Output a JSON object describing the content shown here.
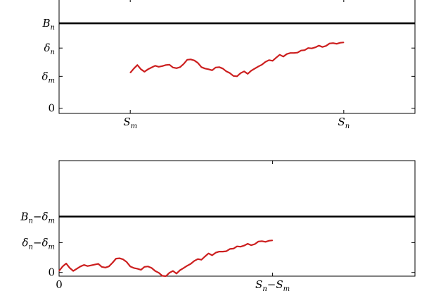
{
  "chart_data": [
    {
      "type": "line",
      "title": "",
      "xlabel": "",
      "ylabel": "",
      "x_ticks": [
        {
          "value": 0,
          "label": {
            "main": "S",
            "sub": "m",
            "pre": "",
            "post": ""
          }
        },
        {
          "value": 60,
          "label": {
            "main": "S",
            "sub": "n",
            "pre": "",
            "post": ""
          }
        }
      ],
      "y_ticks": [
        {
          "value": 0,
          "label": {
            "plain": "0"
          }
        },
        {
          "value": 9,
          "label": {
            "main": "δ",
            "sub": "m"
          }
        },
        {
          "value": 17,
          "label": {
            "main": "δ",
            "sub": "n"
          }
        },
        {
          "value": 24,
          "label": {
            "main": "B",
            "sub": "n"
          }
        }
      ],
      "xlim": [
        -20,
        80
      ],
      "ylim": [
        -1.5,
        31
      ],
      "hlines": [
        {
          "y": 24,
          "color": "#000000"
        }
      ],
      "series": [
        {
          "color": "#cc1f1f",
          "x": [
            0,
            1,
            2,
            3,
            4,
            5,
            6,
            7,
            8,
            9,
            10,
            11,
            12,
            13,
            14,
            15,
            16,
            17,
            18,
            19,
            20,
            21,
            22,
            23,
            24,
            25,
            26,
            27,
            28,
            29,
            30,
            31,
            32,
            33,
            34,
            35,
            36,
            37,
            38,
            39,
            40,
            41,
            42,
            43,
            44,
            45,
            46,
            47,
            48,
            49,
            50,
            51,
            52,
            53,
            54,
            55,
            56,
            57,
            58,
            59,
            60
          ],
          "y": [
            10,
            11.2,
            12.2,
            11,
            10.3,
            11,
            11.5,
            12,
            11.7,
            11.9,
            12.2,
            12.3,
            11.5,
            11.3,
            11.6,
            12.5,
            13.7,
            13.8,
            13.5,
            12.8,
            11.6,
            11.2,
            11,
            10.7,
            11.5,
            11.6,
            11.2,
            10.4,
            9.9,
            9.1,
            9,
            9.9,
            10.4,
            9.7,
            10.6,
            11.2,
            11.8,
            12.3,
            13.1,
            13.6,
            13.4,
            14.3,
            15.1,
            14.6,
            15.3,
            15.6,
            15.6,
            15.7,
            16.3,
            16.4,
            17,
            16.9,
            17.2,
            17.7,
            17.3,
            17.6,
            18.3,
            18.4,
            18.2,
            18.5,
            18.6
          ]
        }
      ]
    },
    {
      "type": "line",
      "title": "",
      "xlabel": "",
      "ylabel": "",
      "x_ticks": [
        {
          "value": 0,
          "label": {
            "plain": "0"
          }
        },
        {
          "value": 60,
          "label": {
            "main": "S",
            "sub": "n",
            "pre": "",
            "post": "−S",
            "sub2": "m"
          }
        }
      ],
      "y_ticks": [
        {
          "value": 0,
          "label": {
            "plain": "0"
          }
        },
        {
          "value": 8,
          "label": {
            "main": "δ",
            "sub": "n",
            "post": "−δ",
            "sub2": "m"
          }
        },
        {
          "value": 15,
          "label": {
            "main": "B",
            "sub": "n",
            "post": "−δ",
            "sub2": "m"
          }
        }
      ],
      "xlim": [
        0,
        100
      ],
      "ylim": [
        -1,
        30
      ],
      "hlines": [
        {
          "y": 15,
          "color": "#000000"
        }
      ],
      "series": [
        {
          "color": "#cc1f1f",
          "x": [
            0,
            1,
            2,
            3,
            4,
            5,
            6,
            7,
            8,
            9,
            10,
            11,
            12,
            13,
            14,
            15,
            16,
            17,
            18,
            19,
            20,
            21,
            22,
            23,
            24,
            25,
            26,
            27,
            28,
            29,
            30,
            31,
            32,
            33,
            34,
            35,
            36,
            37,
            38,
            39,
            40,
            41,
            42,
            43,
            44,
            45,
            46,
            47,
            48,
            49,
            50,
            51,
            52,
            53,
            54,
            55,
            56,
            57,
            58,
            59,
            60
          ],
          "y": [
            0.4,
            1.6,
            2.4,
            1.2,
            0.4,
            1,
            1.6,
            2,
            1.7,
            1.9,
            2.1,
            2.3,
            1.5,
            1.3,
            1.6,
            2.6,
            3.7,
            3.8,
            3.5,
            2.8,
            1.6,
            1.2,
            1,
            0.7,
            1.5,
            1.6,
            1.2,
            0.4,
            -0.1,
            -0.9,
            -1,
            -0.1,
            0.4,
            -0.3,
            0.6,
            1.2,
            1.8,
            2.3,
            3.1,
            3.6,
            3.4,
            4.3,
            5.1,
            4.6,
            5.3,
            5.6,
            5.6,
            5.7,
            6.3,
            6.4,
            7,
            6.9,
            7.2,
            7.7,
            7.3,
            7.6,
            8.3,
            8.4,
            8.2,
            8.5,
            8.6
          ]
        }
      ]
    }
  ]
}
